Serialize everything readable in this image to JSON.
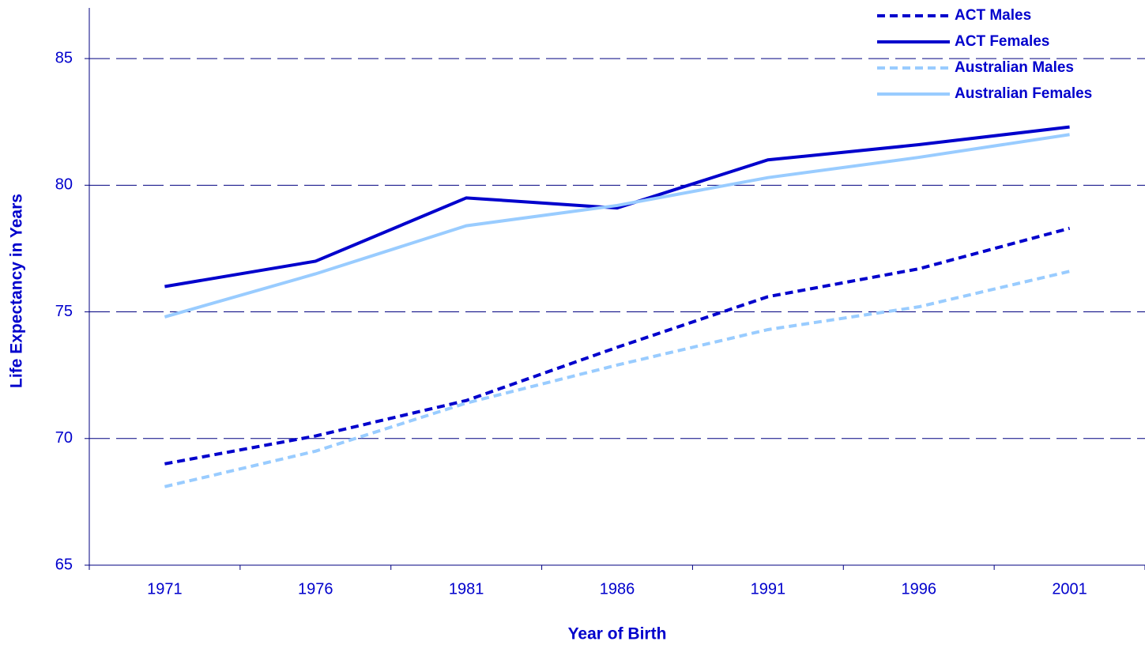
{
  "chart_data": {
    "type": "line",
    "x_label": "Year of Birth",
    "y_label": "Life Expectancy in Years",
    "categories": [
      "1971",
      "1976",
      "1981",
      "1986",
      "1991",
      "1996",
      "2001"
    ],
    "series": [
      {
        "name": "ACT Males",
        "color": "#0000cc",
        "line_style": "dashed",
        "values": [
          69.0,
          70.1,
          71.5,
          73.6,
          75.6,
          76.7,
          78.3
        ]
      },
      {
        "name": "ACT Females",
        "color": "#0000cc",
        "line_style": "solid",
        "values": [
          76.0,
          77.0,
          79.5,
          79.1,
          81.0,
          81.6,
          82.3
        ]
      },
      {
        "name": "Australian Males",
        "color": "#99ccff",
        "line_style": "dashed",
        "values": [
          68.1,
          69.5,
          71.4,
          72.9,
          74.3,
          75.2,
          76.6
        ]
      },
      {
        "name": "Australian Females",
        "color": "#99ccff",
        "line_style": "solid",
        "values": [
          74.8,
          76.5,
          78.4,
          79.2,
          80.3,
          81.1,
          82.0
        ]
      }
    ],
    "ylim": [
      65,
      87
    ],
    "yticks": [
      65,
      70,
      75,
      80,
      85
    ],
    "grid": true,
    "legend": "top-right"
  }
}
